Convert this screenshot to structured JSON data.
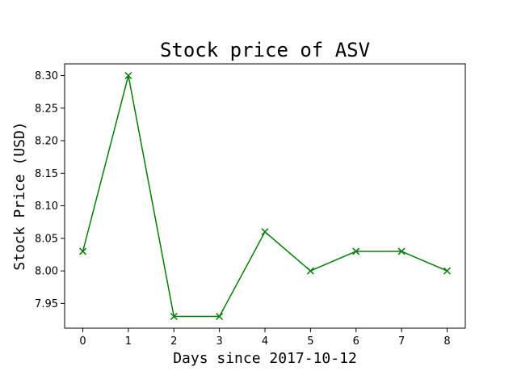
{
  "chart_data": {
    "type": "line",
    "title": "Stock price of ASV",
    "xlabel": "Days since 2017-10-12",
    "ylabel": "Stock Price (USD)",
    "x": [
      0,
      1,
      2,
      3,
      4,
      5,
      6,
      7,
      8
    ],
    "series": [
      {
        "name": "ASV",
        "values": [
          8.03,
          8.3,
          7.93,
          7.93,
          8.06,
          8.0,
          8.03,
          8.03,
          8.0
        ],
        "color": "#008000",
        "marker": "x"
      }
    ],
    "xlim": [
      -0.4,
      8.4
    ],
    "ylim": [
      7.912,
      8.318
    ],
    "xticks": [
      0,
      1,
      2,
      3,
      4,
      5,
      6,
      7,
      8
    ],
    "yticks": [
      7.95,
      8.0,
      8.05,
      8.1,
      8.15,
      8.2,
      8.25,
      8.3
    ],
    "ytick_labels": [
      "7.95",
      "8.00",
      "8.05",
      "8.10",
      "8.15",
      "8.20",
      "8.25",
      "8.30"
    ],
    "xtick_labels": [
      "0",
      "1",
      "2",
      "3",
      "4",
      "5",
      "6",
      "7",
      "8"
    ],
    "grid": false,
    "legend": "none"
  }
}
